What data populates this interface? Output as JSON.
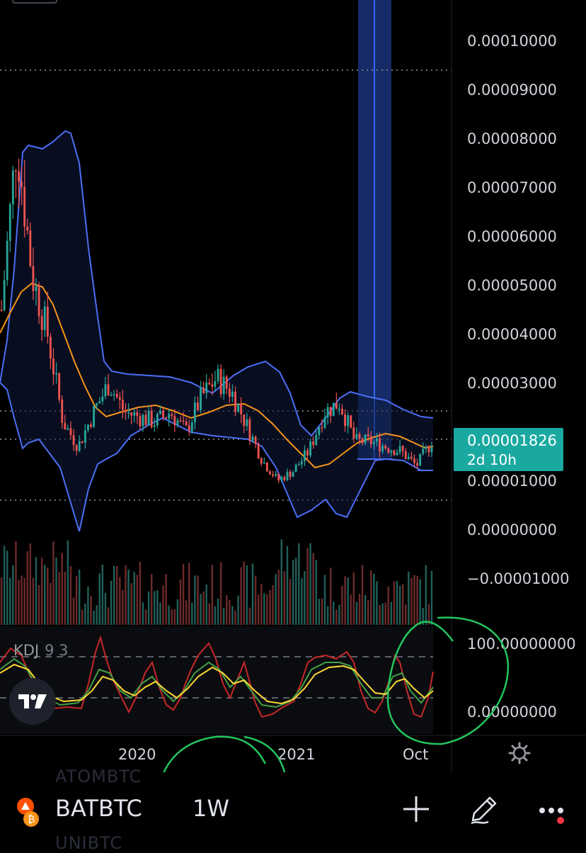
{
  "symbol": "BATBTC",
  "interval": "1W",
  "ghost_symbols": [
    "ATOMBTC",
    "UNIBTC"
  ],
  "last_price": "0.00001826",
  "countdown": "2d 10h",
  "price_axis_labels": [
    "0.00010000",
    "0.00009000",
    "0.00008000",
    "0.00007000",
    "0.00006000",
    "0.00005000",
    "0.00004000",
    "0.00003000",
    "0.00001000",
    "0.00000000",
    "−0.00001000"
  ],
  "kdj_axis_labels": [
    "100.00000000",
    "0.00000000"
  ],
  "time_labels": [
    "2020",
    "2021",
    "Oct"
  ],
  "kdj_indicator": {
    "name": "KDJ",
    "params": "9 3"
  },
  "colors": {
    "up": "#26a69a",
    "down": "#ef5350",
    "bollinger": "#4c6ef5",
    "basis": "#f7931a",
    "highlight": "#2962ff",
    "annotation": "#22c55e",
    "badge": "#1aa9a0"
  },
  "chart_data": {
    "type": "candlestick",
    "ylim": [
      -1e-05,
      0.0001
    ],
    "x": [
      "2019-06-01",
      "2019-07-01",
      "2019-08-01",
      "2019-09-01",
      "2019-10-01",
      "2019-11-01",
      "2019-12-01",
      "2020-01-01",
      "2020-02-01",
      "2020-03-01",
      "2020-04-01",
      "2020-05-01",
      "2020-06-01",
      "2020-07-01",
      "2020-08-01",
      "2020-09-01",
      "2020-10-01",
      "2020-11-01",
      "2020-12-01",
      "2021-01-01",
      "2021-02-01",
      "2021-03-01",
      "2021-04-01",
      "2021-05-01",
      "2021-06-01",
      "2021-07-01",
      "2021-08-01",
      "2021-09-01",
      "2021-10-01"
    ],
    "close": [
      4.5e-05,
      8e-05,
      5.2e-05,
      4e-05,
      2.2e-05,
      1.7e-05,
      2.4e-05,
      3e-05,
      2.4e-05,
      2.3e-05,
      2.2e-05,
      2.4e-05,
      2e-05,
      2.7e-05,
      3.1e-05,
      2.8e-05,
      2.1e-05,
      1.4e-05,
      1e-05,
      1.2e-05,
      1.6e-05,
      2.4e-05,
      2.6e-05,
      1.8e-05,
      1.8e-05,
      1.7e-05,
      1.6e-05,
      1.3e-05,
      1.8e-05
    ],
    "series_bands": {
      "upper_max": 8.1e-05,
      "lower_min": 0.0
    },
    "last_value": 1.826e-05
  }
}
